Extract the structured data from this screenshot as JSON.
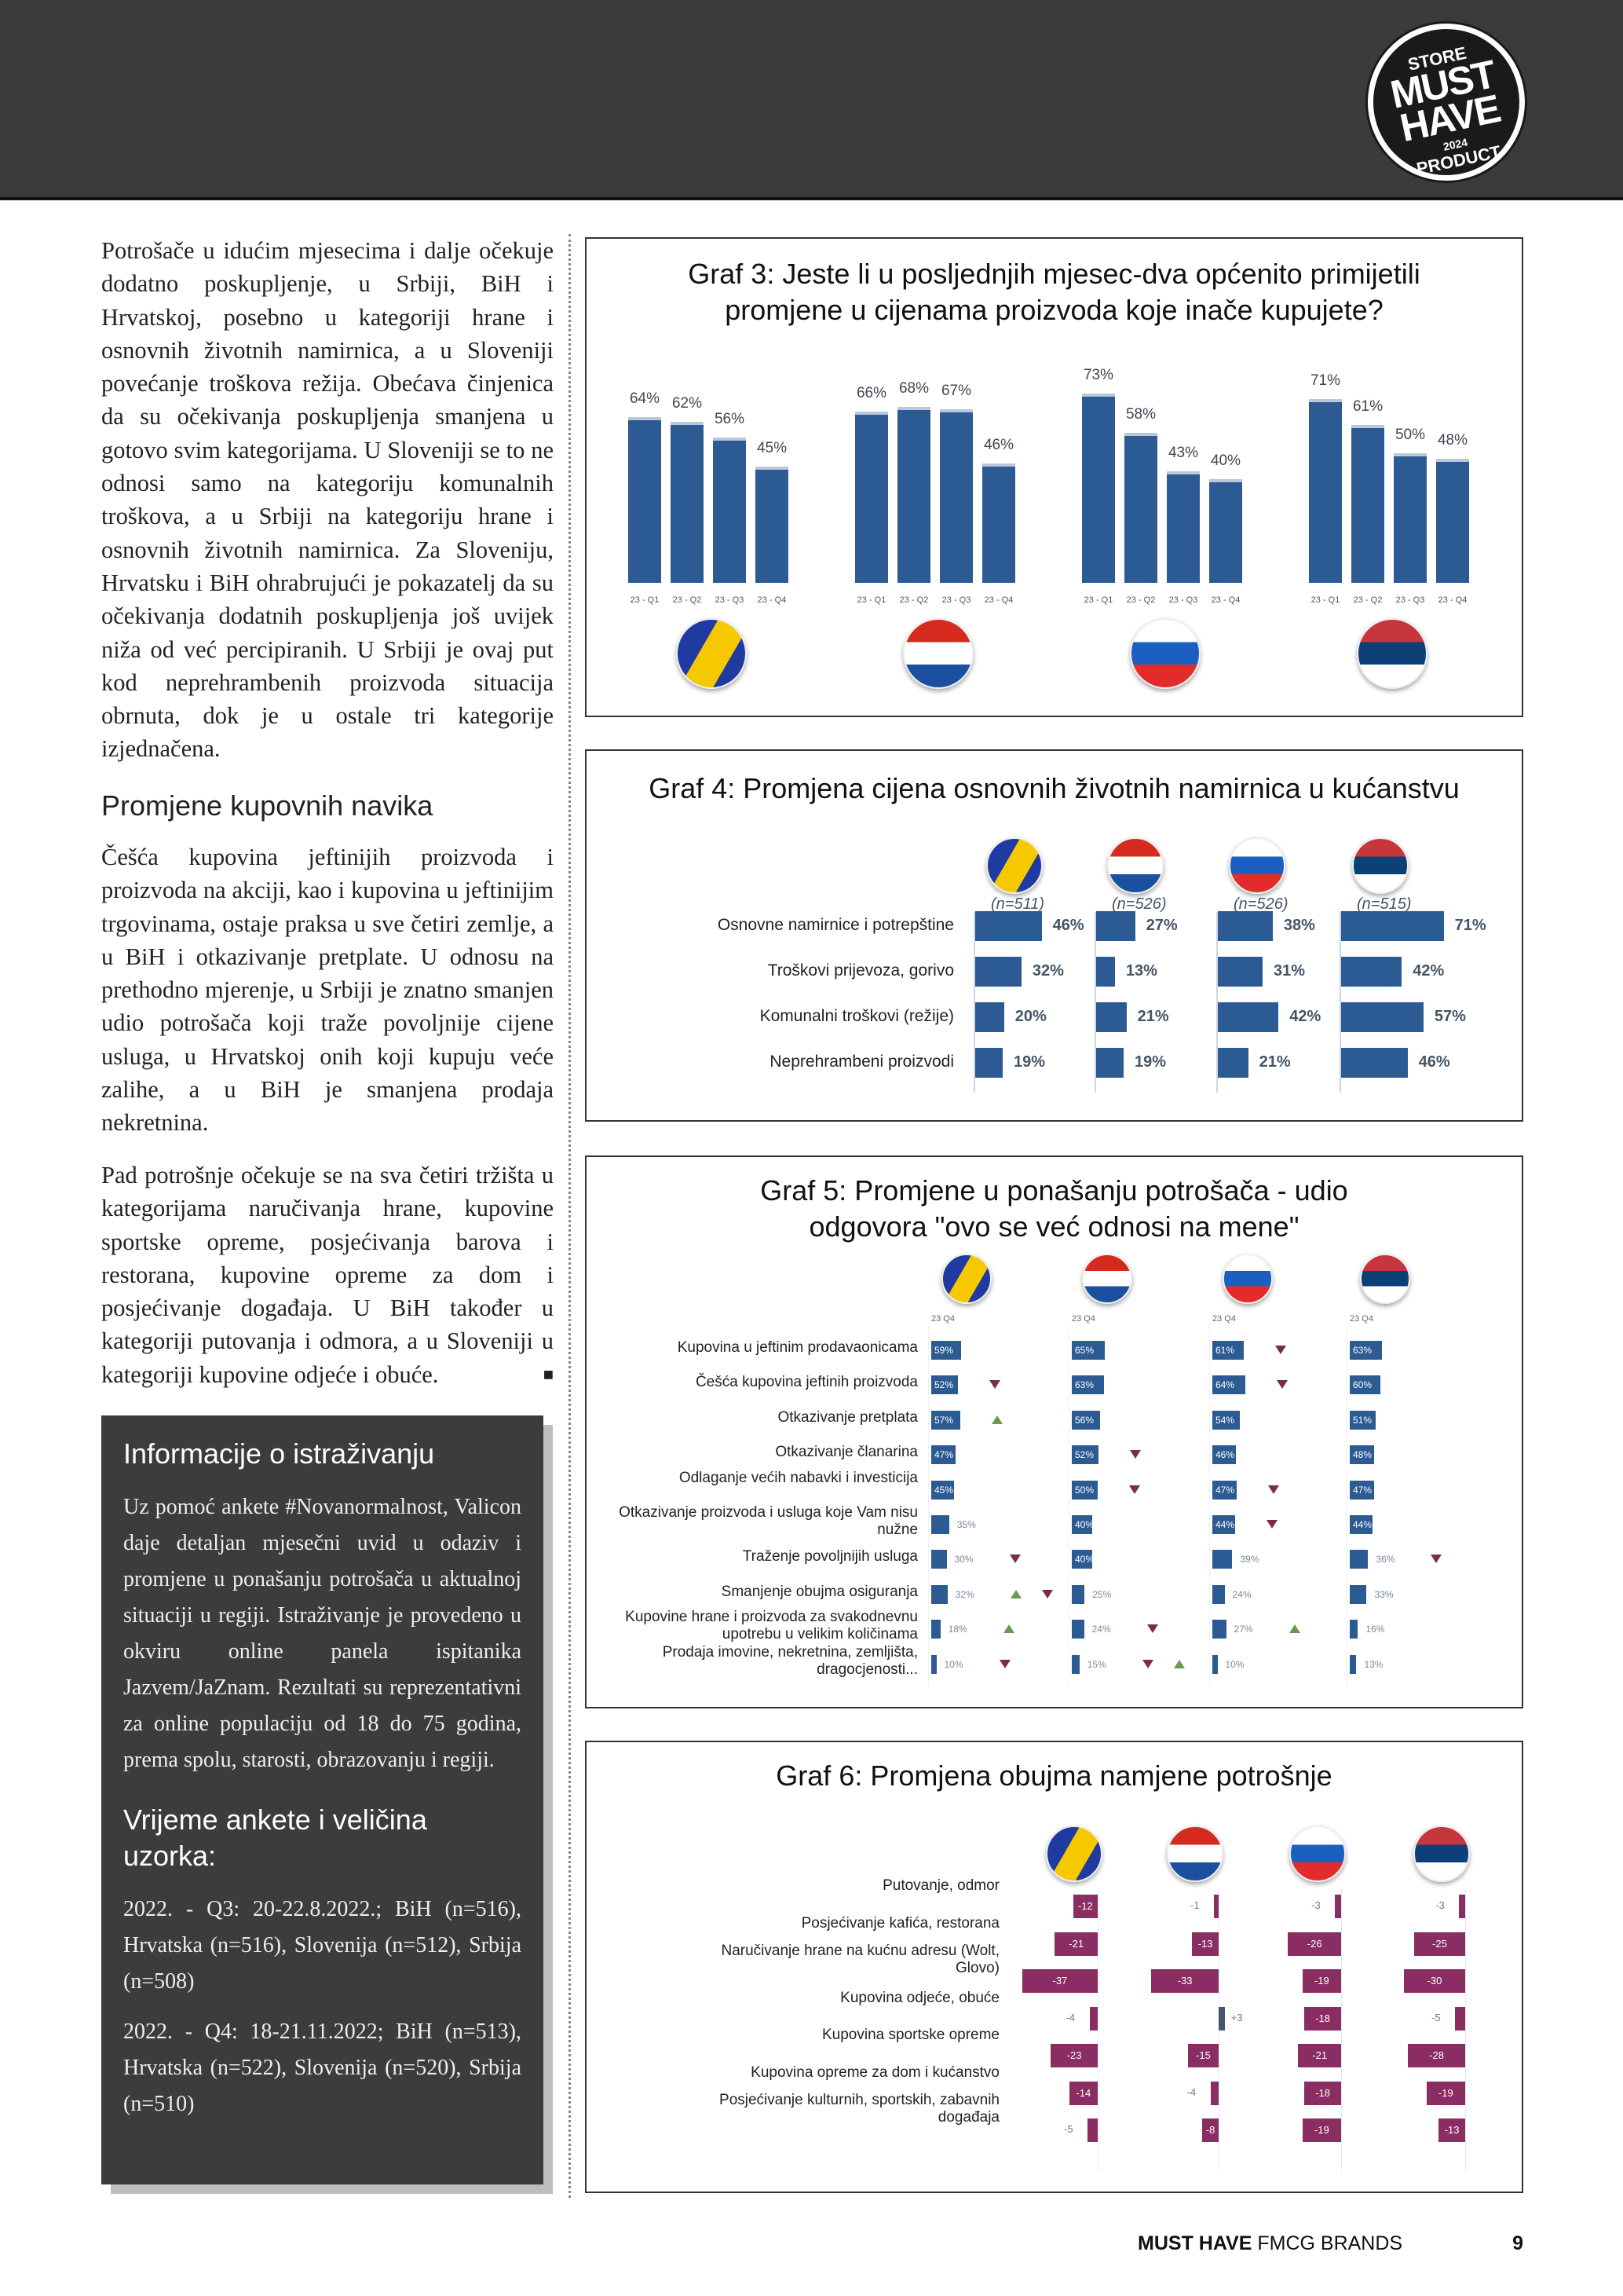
{
  "logo": {
    "line1": "STORE",
    "line2": "MUST HAVE",
    "year": "2024",
    "line3": "PRODUCT"
  },
  "left": {
    "p1": "Potrošače u idućim mjesecima i dalje očekuje dodatno poskupljenje, u Srbiji, BiH i Hrvatskoj, posebno u kategoriji hrane i osnovnih životnih namirnica, a u Sloveniji povećanje troškova režija. Obećava činjenica da su očekivanja poskupljenja smanjena u gotovo svim kategorijama. U Sloveniji se to ne odnosi samo na kategoriju komunalnih troškova, a u Srbiji na kategoriju hrane i osnovnih životnih namirnica. Za Sloveniju, Hrvatsku i BiH ohrabrujući je pokazatelj da su očekivanja dodatnih poskupljenja još uvijek niža od već percipiranih. U Srbiji je ovaj put kod neprehrambenih proizvoda situacija obrnuta, dok je u ostale tri kategorije izjednačena.",
    "heading": "Promjene kupovnih navika",
    "p2": "Češća kupovina jeftinijih proizvoda i proizvoda na akciji, kao i kupovina u jeftinijim trgovinama, ostaje praksa u sve četiri zemlje, a u BiH i otkazivanje pretplate. U odnosu na prethodno mjerenje, u Srbiji je znatno smanjen udio potrošača koji traže povoljnije cijene usluga, u Hrvatskoj onih koji kupuju veće zalihe, a u BiH je smanjena prodaja nekretnina.",
    "p3": "Pad potrošnje očekuje se na sva četiri tržišta u kategorijama naručivanja hrane, kupovine sportske opreme, posjećivanja barova i restorana, kupovine opreme za dom i posjećivanje događaja. U BiH također u kategoriji putovanja i odmora, a u Sloveniji u kategoriji kupovine odjeće i obuće.",
    "end_mark": "■"
  },
  "info": {
    "title": "Informacije o istraživanju",
    "p1": "Uz pomoć ankete #Novanormalnost, Valicon daje detaljan mjesečni uvid u odaziv i promjene u ponašanju potrošača u aktualnoj situaciji u regiji. Istraživanje je provedeno u okviru online panela ispitanika Jazvem/JaZnam. Rezultati su reprezentativni za online populaciju od 18 do 75 godina, prema spolu, starosti, obrazovanju i regiji.",
    "title2": "Vrijeme ankete i veličina uzorka:",
    "p2": "2022. - Q3: 20-22.8.2022.; BiH (n=516), Hrvatska (n=516), Slovenija (n=512), Srbija (n=508)",
    "p3": "2022. - Q4: 18-21.11.2022; BiH (n=513), Hrvatska (n=522), Slovenija (n=520), Srbija (n=510)"
  },
  "colors": {
    "bar": "#2c5a92",
    "negative": "#8a2d62",
    "up": "#6a9a50",
    "down": "#7a2d45"
  },
  "chart_data": [
    {
      "type": "bar",
      "title": "Graf 3: Jeste li u posljednjih mjesec-dva općenito primijetili promjene u cijenama proizvoda koje inače kupujete?",
      "categories": [
        "23 - Q1",
        "23 - Q2",
        "23 - Q3",
        "23 - Q4"
      ],
      "groups": [
        "bih",
        "hr",
        "si",
        "rs"
      ],
      "values": [
        [
          64,
          62,
          56,
          45
        ],
        [
          66,
          68,
          67,
          46
        ],
        [
          73,
          58,
          43,
          40
        ],
        [
          71,
          61,
          50,
          48
        ]
      ],
      "unit": "%"
    },
    {
      "type": "bar",
      "orientation": "horizontal",
      "title": "Graf 4: Promjena cijena osnovnih životnih namirnica u kućanstvu",
      "rows": [
        "Osnovne namirnice i potrepštine",
        "Troškovi prijevoza, gorivo",
        "Komunalni troškovi (režije)",
        "Neprehrambeni proizvodi"
      ],
      "groups": [
        "bih",
        "hr",
        "si",
        "rs"
      ],
      "n": [
        "(n=511)",
        "(n=526)",
        "(n=526)",
        "(n=515)"
      ],
      "values": [
        [
          46,
          32,
          20,
          19
        ],
        [
          27,
          13,
          21,
          19
        ],
        [
          38,
          31,
          42,
          21
        ],
        [
          71,
          42,
          57,
          46
        ]
      ],
      "unit": "%"
    },
    {
      "type": "bar",
      "orientation": "horizontal",
      "title": "Graf 5: Promjene u ponašanju potrošača - udio odgovora \"ovo se već odnosi na mene\"",
      "column_label": "23 Q4",
      "rows": [
        "Kupovina u jeftinim prodavaonicama",
        "Češća kupovina jeftinih proizvoda",
        "Otkazivanje pretplata",
        "Otkazivanje članarina",
        "Odlaganje većih nabavki i investicija",
        "Otkazivanje proizvoda i usluga koje Vam nisu nužne",
        "Traženje povoljnijih usluga",
        "Smanjenje obujma osiguranja",
        "Kupovine hrane i proizvoda za svakodnevnu upotrebu u velikim količinama",
        "Prodaja imovine, nekretnina, zemljišta, dragocjenosti..."
      ],
      "groups": [
        "bih",
        "hr",
        "si",
        "rs"
      ],
      "values": [
        [
          59,
          52,
          57,
          47,
          45,
          35,
          30,
          32,
          18,
          10
        ],
        [
          65,
          63,
          56,
          52,
          50,
          40,
          40,
          25,
          24,
          15
        ],
        [
          61,
          64,
          54,
          46,
          47,
          44,
          39,
          24,
          27,
          10
        ],
        [
          63,
          60,
          51,
          48,
          47,
          44,
          36,
          33,
          16,
          13
        ]
      ],
      "trends": [
        [
          [],
          [
            "down"
          ],
          [
            "up"
          ],
          [],
          [],
          [],
          [
            "down"
          ],
          [
            "up",
            "down"
          ],
          [
            "up"
          ],
          [
            "down"
          ]
        ],
        [
          [],
          [],
          [],
          [
            "down"
          ],
          [
            "down"
          ],
          [],
          [],
          [],
          [
            "down"
          ],
          [
            "down",
            "up"
          ]
        ],
        [
          [
            "down"
          ],
          [
            "down"
          ],
          [],
          [],
          [
            "down"
          ],
          [
            "down"
          ],
          [],
          [],
          [
            "up"
          ],
          []
        ],
        [
          [],
          [],
          [],
          [],
          [],
          [],
          [
            "down"
          ],
          [],
          [],
          []
        ]
      ],
      "unit": "%"
    },
    {
      "type": "bar",
      "orientation": "horizontal",
      "title": "Graf 6: Promjena obujma namjene potrošnje",
      "rows": [
        "Putovanje, odmor",
        "Posjećivanje kafića, restorana",
        "Naručivanje hrane na kućnu adresu (Wolt, Glovo)",
        "Kupovina odjeće, obuće",
        "Kupovina sportske opreme",
        "Kupovina opreme za dom i kućanstvo",
        "Posjećivanje kulturnih, sportskih, zabavnih događaja"
      ],
      "groups": [
        "bih",
        "hr",
        "si",
        "rs"
      ],
      "values": [
        [
          -12,
          -21,
          -37,
          -4,
          -23,
          -14,
          -5
        ],
        [
          -1,
          -13,
          -33,
          3,
          -15,
          -4,
          -8
        ],
        [
          -3,
          -26,
          -19,
          -18,
          -21,
          -18,
          -19
        ],
        [
          -3,
          -25,
          -30,
          -5,
          -28,
          -19,
          -13
        ]
      ]
    }
  ],
  "footer": {
    "brand": "MUST HAVE",
    "sub": " FMCG BRANDS",
    "page": "9"
  }
}
